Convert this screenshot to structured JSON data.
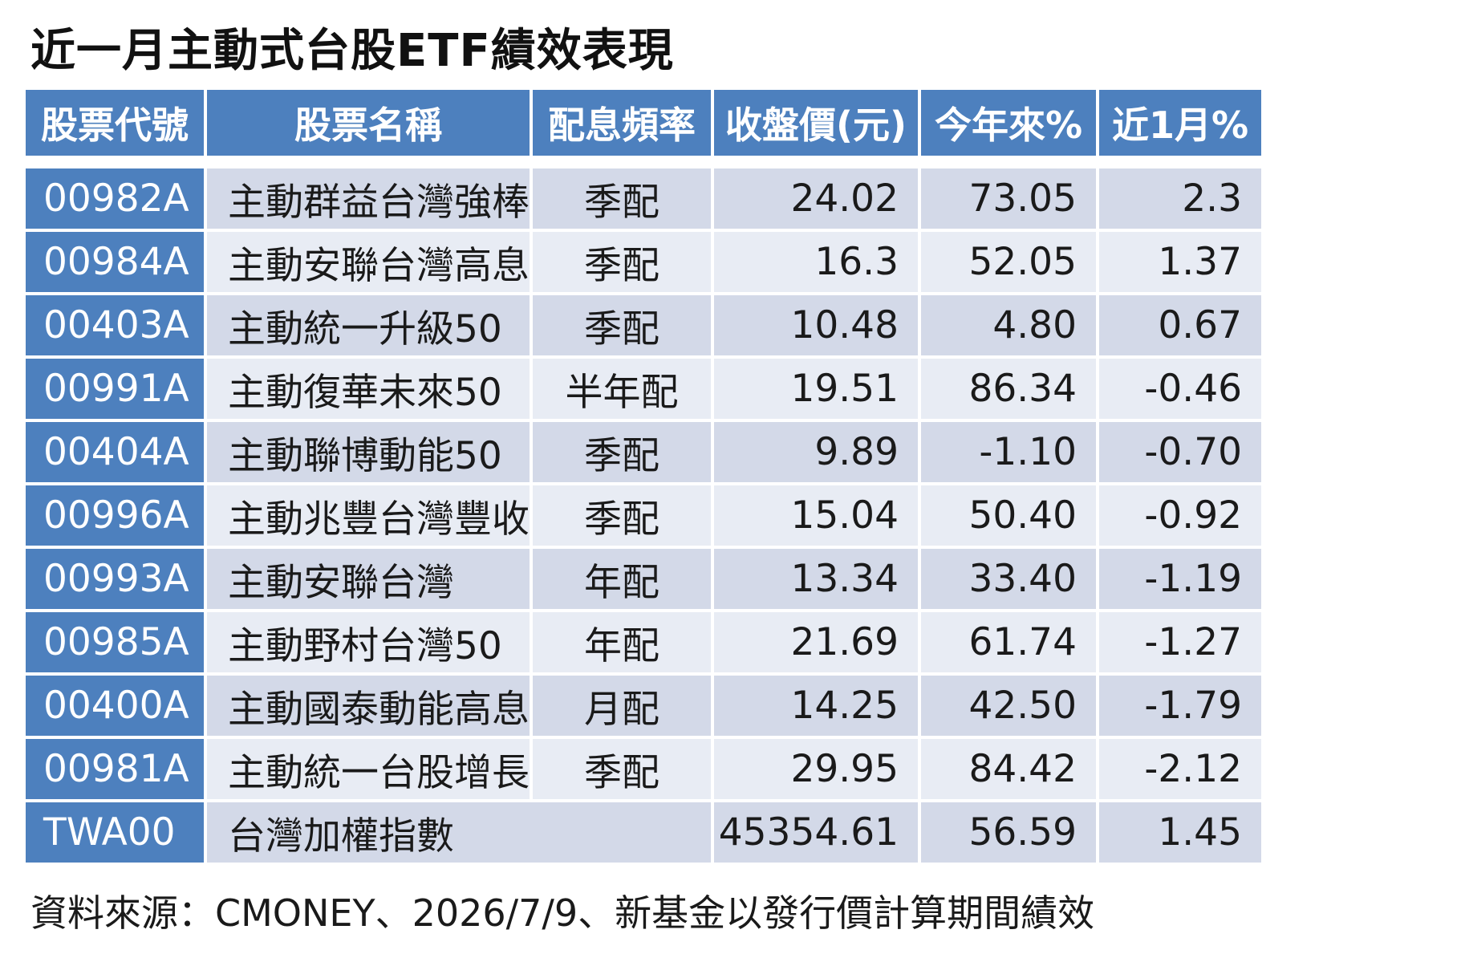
{
  "title": "近一月主動式台股ETF績效表現",
  "headers": {
    "code": "股票代號",
    "name": "股票名稱",
    "freq": "配息頻率",
    "price": "收盤價(元)",
    "ytd": "今年來%",
    "month": "近1月%"
  },
  "rows": [
    {
      "code": "00982A",
      "name": "主動群益台灣強棒",
      "freq": "季配",
      "price": "24.02",
      "ytd": "73.05",
      "month": "2.3"
    },
    {
      "code": "00984A",
      "name": "主動安聯台灣高息",
      "freq": "季配",
      "price": "16.3",
      "ytd": "52.05",
      "month": "1.37"
    },
    {
      "code": "00403A",
      "name": "主動統一升級50",
      "freq": "季配",
      "price": "10.48",
      "ytd": "4.80",
      "month": "0.67"
    },
    {
      "code": "00991A",
      "name": "主動復華未來50",
      "freq": "半年配",
      "price": "19.51",
      "ytd": "86.34",
      "month": "-0.46"
    },
    {
      "code": "00404A",
      "name": "主動聯博動能50",
      "freq": "季配",
      "price": "9.89",
      "ytd": "-1.10",
      "month": "-0.70"
    },
    {
      "code": "00996A",
      "name": "主動兆豐台灣豐收",
      "freq": "季配",
      "price": "15.04",
      "ytd": "50.40",
      "month": "-0.92"
    },
    {
      "code": "00993A",
      "name": "主動安聯台灣",
      "freq": "年配",
      "price": "13.34",
      "ytd": "33.40",
      "month": "-1.19"
    },
    {
      "code": "00985A",
      "name": "主動野村台灣50",
      "freq": "年配",
      "price": "21.69",
      "ytd": "61.74",
      "month": "-1.27"
    },
    {
      "code": "00400A",
      "name": "主動國泰動能高息",
      "freq": "月配",
      "price": "14.25",
      "ytd": "42.50",
      "month": "-1.79"
    },
    {
      "code": "00981A",
      "name": "主動統一台股增長",
      "freq": "季配",
      "price": "29.95",
      "ytd": "84.42",
      "month": "-2.12"
    },
    {
      "code": "TWA00",
      "name": "台灣加權指數",
      "freq": "",
      "price": "45354.61",
      "ytd": "56.59",
      "month": "1.45"
    }
  ],
  "source": "資料來源：CMONEY、2026/7/9、新基金以發行價計算期間績效",
  "colors": {
    "header_bg": "#4d80be",
    "row_odd": "#d3d9e8",
    "row_even": "#e8ecf4"
  }
}
